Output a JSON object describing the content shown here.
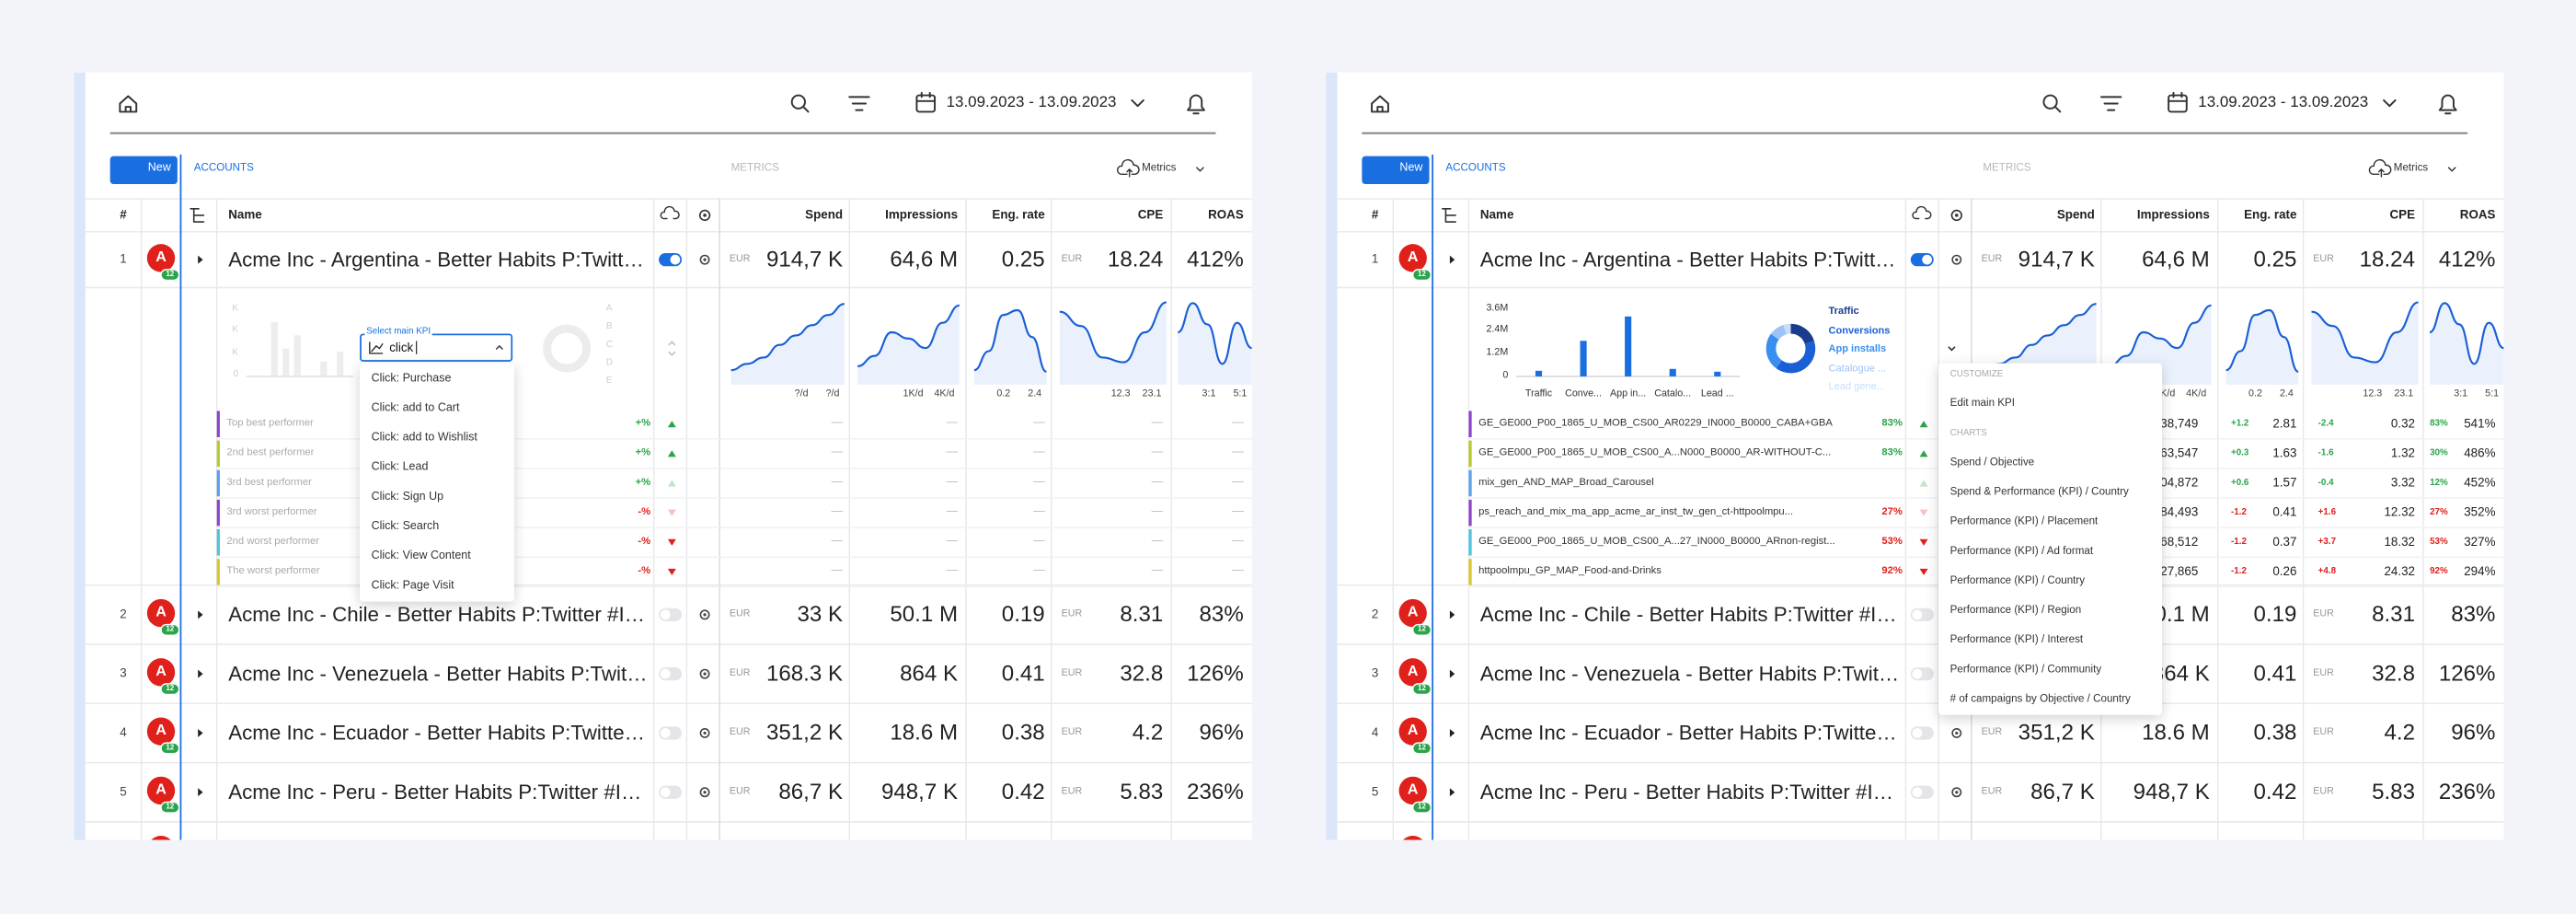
{
  "toolbar": {
    "date_range": "13.09.2023 - 13.09.2023",
    "new_button": "New",
    "accounts_label": "ACCOUNTS",
    "metrics_label": "METRICS",
    "metrics_button": "Metrics"
  },
  "columns": {
    "index": "#",
    "name": "Name",
    "spend": "Spend",
    "impressions": "Impressions",
    "eng_rate": "Eng. rate",
    "cpe": "CPE",
    "roas": "ROAS"
  },
  "rows": [
    {
      "index": "1",
      "badge": "A",
      "badge_count": "12",
      "name": "Acme Inc - Argentina - Better Habits P:Twitter...",
      "active": true,
      "spend_currency": "EUR",
      "spend": "914,7 K",
      "impressions": "64,6 M",
      "eng_rate": "0.25",
      "cpe_currency": "EUR",
      "cpe": "18.24",
      "roas": "412%"
    },
    {
      "index": "2",
      "badge": "A",
      "badge_count": "12",
      "name": "Acme Inc - Chile - Better Habits P:Twitter #ID...",
      "active": false,
      "spend_currency": "EUR",
      "spend": "33 K",
      "impressions": "50.1 M",
      "eng_rate": "0.19",
      "cpe_currency": "EUR",
      "cpe": "8.31",
      "roas": "83%"
    },
    {
      "index": "3",
      "badge": "A",
      "badge_count": "12",
      "name": "Acme Inc - Venezuela - Better Habits P:Twitte...",
      "active": false,
      "spend_currency": "EUR",
      "spend": "168.3 K",
      "impressions": "864 K",
      "eng_rate": "0.41",
      "cpe_currency": "EUR",
      "cpe": "32.8",
      "roas": "126%"
    },
    {
      "index": "4",
      "badge": "A",
      "badge_count": "12",
      "name": "Acme Inc - Ecuador - Better Habits P:Twitter ...",
      "active": false,
      "spend_currency": "EUR",
      "spend": "351,2 K",
      "impressions": "18.6 M",
      "eng_rate": "0.38",
      "cpe_currency": "EUR",
      "cpe": "4.2",
      "roas": "96%"
    },
    {
      "index": "5",
      "badge": "A",
      "badge_count": "12",
      "name": "Acme Inc - Peru - Better Habits P:Twitter #ID...",
      "active": false,
      "spend_currency": "EUR",
      "spend": "86,7 K",
      "impressions": "948,7 K",
      "eng_rate": "0.42",
      "cpe_currency": "EUR",
      "cpe": "5.83",
      "roas": "236%"
    }
  ],
  "sparkline_ranges": [
    {
      "min": "?/d",
      "max": "?/d"
    },
    {
      "min": "1K/d",
      "max": "4K/d"
    },
    {
      "min": "0.2",
      "max": "2.4"
    },
    {
      "min": "12.3",
      "max": "23.1"
    },
    {
      "min": "3:1",
      "max": "5:1"
    }
  ],
  "left_panel": {
    "kpi_label": "Select main KPI",
    "kpi_input": "click",
    "kpi_options": [
      "Click: Purchase",
      "Click: add to Cart",
      "Click: add to Wishlist",
      "Click: Lead",
      "Click: Sign Up",
      "Click: Search",
      "Click: View Content",
      "Click: Page Visit"
    ],
    "placeholder_axis": [
      "K",
      "K",
      "K",
      "0"
    ],
    "placeholder_legend": [
      "A",
      "B",
      "C",
      "D",
      "E"
    ],
    "empty_value": "—",
    "performers": [
      {
        "name": "Top best performer",
        "change": "+%",
        "color": "#8e44c9",
        "trend": "up",
        "strong": true
      },
      {
        "name": "2nd best performer",
        "change": "+%",
        "color": "#b8c92e",
        "trend": "up",
        "strong": true
      },
      {
        "name": "3rd best performer",
        "change": "+%",
        "color": "#5aa0e6",
        "trend": "up",
        "strong": false
      },
      {
        "name": "3rd worst performer",
        "change": "-%",
        "color": "#8e44c9",
        "trend": "down",
        "strong": false
      },
      {
        "name": "2nd worst performer",
        "change": "-%",
        "color": "#4ec3d9",
        "trend": "down",
        "strong": true
      },
      {
        "name": "The worst performer",
        "change": "-%",
        "color": "#d9c62a",
        "trend": "down",
        "strong": true
      }
    ]
  },
  "right_panel": {
    "chart_data": {
      "type": "bar",
      "categories": [
        "Traffic",
        "Conve...",
        "App in...",
        "Catalo...",
        "Lead ..."
      ],
      "values": [
        300000,
        1900000,
        3200000,
        400000,
        250000
      ],
      "color": "#1a6fe0",
      "ylim": [
        0,
        3600000
      ],
      "yticks": [
        0,
        {
          "value": 1200000,
          "label": "1.2M"
        },
        {
          "value": 2400000,
          "label": "2.4M"
        },
        {
          "value": 3600000,
          "label": "3.6M"
        }
      ]
    },
    "donut": {
      "type": "pie",
      "labels": [
        "Traffic",
        "Conversions",
        "App installs",
        "Catalogue ...",
        "Lead gene..."
      ],
      "values": [
        20,
        40,
        25,
        10,
        5
      ],
      "colors": [
        "#1b3c8c",
        "#1a5fd6",
        "#3a8ef0",
        "#9cc3f5",
        "#c9dcf8"
      ]
    },
    "campaigns": [
      {
        "name": "GE_GE000_P00_1865_U_MOB_CS00_AR0229_IN000_B0000_CABA+GBA",
        "share": "83%",
        "color": "#8e44c9",
        "trend": "up",
        "strong": true,
        "impressions": "38,749",
        "eng_delta": "+1.2",
        "eng_rate": "2.81",
        "cpe_delta": "-2.4",
        "cpe": "0.32",
        "roas_delta": "83%",
        "roas": "541%"
      },
      {
        "name": "GE_GE000_P00_1865_U_MOB_CS00_A...N000_B0000_AR-WITHOUT-C...",
        "share": "83%",
        "color": "#b8c92e",
        "trend": "up",
        "strong": true,
        "impressions": "63,547",
        "eng_delta": "+0.3",
        "eng_rate": "1.63",
        "cpe_delta": "-1.6",
        "cpe": "1.32",
        "roas_delta": "30%",
        "roas": "486%"
      },
      {
        "name": "mix_gen_AND_MAP_Broad_Carousel",
        "share": null,
        "color": "#5aa0e6",
        "trend": "up",
        "strong": false,
        "impressions": "04,872",
        "eng_delta": "+0.6",
        "eng_rate": "1.57",
        "cpe_delta": "-0.4",
        "cpe": "3.32",
        "roas_delta": "12%",
        "roas": "452%"
      },
      {
        "name": "ps_reach_and_mix_ma_app_acme_ar_inst_tw_gen_ct-httpoolmpu...",
        "share": "27%",
        "color": "#8e44c9",
        "trend": "down",
        "strong": false,
        "impressions": "84,493",
        "eng_delta": "-1.2",
        "eng_rate": "0.41",
        "cpe_delta": "+1.6",
        "cpe": "12.32",
        "roas_delta": "27%",
        "roas": "352%"
      },
      {
        "name": "GE_GE000_P00_1865_U_MOB_CS00_A...27_IN000_B0000_ARnon-regist...",
        "share": "53%",
        "color": "#4ec3d9",
        "trend": "down",
        "strong": true,
        "impressions": "68,512",
        "eng_delta": "-1.2",
        "eng_rate": "0.37",
        "cpe_delta": "+3.7",
        "cpe": "18.32",
        "roas_delta": "53%",
        "roas": "327%"
      },
      {
        "name": "httpoolmpu_GP_MAP_Food-and-Drinks",
        "share": "92%",
        "color": "#d9c62a",
        "trend": "down",
        "strong": true,
        "impressions": "27,865",
        "eng_delta": "-1.2",
        "eng_rate": "0.26",
        "cpe_delta": "+4.8",
        "cpe": "24.32",
        "roas_delta": "92%",
        "roas": "294%"
      }
    ],
    "menu": {
      "customize_heading": "CUSTOMIZE",
      "edit_kpi": "Edit main KPI",
      "charts_heading": "CHARTS",
      "chart_options": [
        "Spend / Objective",
        "Spend & Performance (KPI) / Country",
        "Performance (KPI) / Placement",
        "Performance (KPI) / Ad format",
        "Performance (KPI) / Country",
        "Performance (KPI) / Region",
        "Performance (KPI) / Interest",
        "Performance (KPI) / Community",
        "# of campaigns by Objective / Country"
      ]
    }
  }
}
